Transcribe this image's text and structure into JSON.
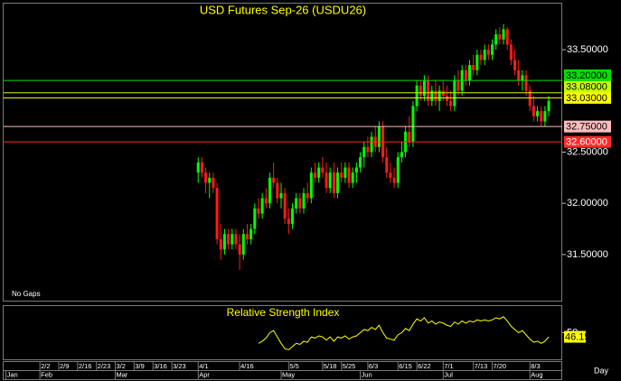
{
  "chart_data": [
    {
      "type": "candlestick",
      "title": "USD Futures Sep-26 (USDU26)",
      "annotation": "No Gaps",
      "x_label": "Day",
      "categories": [
        null,
        null,
        null,
        null,
        null,
        null,
        null,
        null,
        null,
        "2/2",
        null,
        null,
        null,
        null,
        "2/9",
        null,
        null,
        null,
        null,
        "2/16",
        null,
        null,
        null,
        null,
        "2/23",
        null,
        null,
        null,
        null,
        "3/2",
        null,
        null,
        null,
        null,
        "3/9",
        null,
        null,
        null,
        null,
        "3/16",
        null,
        null,
        null,
        null,
        "3/23",
        null,
        null,
        null,
        null,
        null,
        null,
        "4/1",
        null,
        null,
        null,
        null,
        null,
        null,
        null,
        null,
        null,
        null,
        "4/16",
        null,
        null,
        null,
        null,
        null,
        null,
        null,
        null,
        null,
        null,
        null,
        null,
        "5/5",
        null,
        null,
        null,
        null,
        null,
        null,
        null,
        null,
        "5/18",
        null,
        null,
        null,
        null,
        "5/25",
        null,
        null,
        null,
        null,
        null,
        null,
        "6/3",
        null,
        null,
        null,
        null,
        null,
        null,
        null,
        "6/15",
        null,
        null,
        null,
        null,
        "6/22",
        null,
        null,
        null,
        null,
        null,
        null,
        "7/1",
        null,
        null,
        null,
        null,
        null,
        null,
        null,
        "7/13",
        null,
        null,
        null,
        null,
        "7/20",
        null,
        null,
        null,
        null,
        null,
        null,
        null,
        null,
        null,
        "8/3",
        null,
        null,
        null,
        null,
        null,
        null,
        null,
        null
      ],
      "months": [
        "Jan",
        null,
        null,
        null,
        null,
        null,
        null,
        null,
        null,
        "Feb",
        null,
        null,
        null,
        null,
        null,
        null,
        null,
        null,
        null,
        null,
        null,
        null,
        null,
        null,
        null,
        null,
        null,
        null,
        null,
        "Mar",
        null,
        null,
        null,
        null,
        null,
        null,
        null,
        null,
        null,
        null,
        null,
        null,
        null,
        null,
        null,
        null,
        null,
        null,
        null,
        null,
        null,
        "Apr",
        null,
        null,
        null,
        null,
        null,
        null,
        null,
        null,
        null,
        null,
        null,
        null,
        null,
        null,
        null,
        null,
        null,
        null,
        null,
        null,
        null,
        "May",
        null,
        null,
        null,
        null,
        null,
        null,
        null,
        null,
        null,
        null,
        null,
        null,
        null,
        null,
        null,
        null,
        null,
        null,
        null,
        null,
        "Jun",
        null,
        null,
        null,
        null,
        null,
        null,
        null,
        null,
        null,
        null,
        null,
        null,
        null,
        null,
        null,
        null,
        null,
        null,
        null,
        null,
        null,
        "Jul",
        null,
        null,
        null,
        null,
        null,
        null,
        null,
        null,
        null,
        null,
        null,
        null,
        null,
        null,
        null,
        null,
        null,
        null,
        null,
        null,
        null,
        null,
        "Aug",
        null,
        null,
        null,
        null,
        null,
        null,
        null,
        null
      ],
      "open": [
        null,
        null,
        null,
        null,
        null,
        null,
        null,
        null,
        null,
        null,
        null,
        null,
        null,
        null,
        null,
        null,
        null,
        null,
        null,
        null,
        null,
        null,
        null,
        null,
        null,
        null,
        null,
        null,
        null,
        null,
        null,
        null,
        null,
        null,
        null,
        null,
        null,
        null,
        null,
        null,
        null,
        null,
        null,
        null,
        null,
        null,
        null,
        null,
        null,
        null,
        null,
        32.3,
        32.4,
        32.3,
        32.2,
        32.25,
        32.15,
        31.65,
        31.55,
        31.7,
        31.6,
        31.7,
        31.6,
        31.5,
        31.7,
        31.65,
        31.75,
        31.95,
        31.9,
        32.05,
        32.0,
        32.25,
        32.2,
        32.05,
        32.1,
        31.85,
        31.8,
        31.95,
        32.05,
        31.95,
        32.1,
        32.05,
        32.3,
        32.25,
        32.35,
        32.3,
        32.15,
        32.3,
        32.1,
        32.3,
        32.25,
        32.35,
        32.2,
        32.3,
        32.35,
        32.45,
        32.55,
        32.5,
        32.65,
        32.55,
        32.75,
        32.45,
        32.3,
        32.25,
        32.2,
        32.45,
        32.5,
        32.7,
        32.6,
        32.95,
        33.15,
        33.05,
        33.2,
        33.0,
        33.1,
        33.0,
        33.1,
        33.05,
        33.0,
        32.95,
        33.2,
        33.1,
        33.3,
        33.2,
        33.35,
        33.3,
        33.45,
        33.4,
        33.5,
        33.45,
        33.55,
        33.65,
        33.6,
        33.7,
        33.55,
        33.4,
        33.3,
        33.2,
        33.25,
        33.1,
        32.95,
        32.85,
        32.9,
        32.8,
        32.9,
        null,
        null,
        null
      ],
      "high": [
        null,
        null,
        null,
        null,
        null,
        null,
        null,
        null,
        null,
        null,
        null,
        null,
        null,
        null,
        null,
        null,
        null,
        null,
        null,
        null,
        null,
        null,
        null,
        null,
        null,
        null,
        null,
        null,
        null,
        null,
        null,
        null,
        null,
        null,
        null,
        null,
        null,
        null,
        null,
        null,
        null,
        null,
        null,
        null,
        null,
        null,
        null,
        null,
        null,
        null,
        null,
        32.45,
        32.45,
        32.35,
        32.3,
        32.3,
        32.2,
        31.8,
        31.75,
        31.75,
        31.75,
        31.75,
        31.7,
        31.75,
        31.8,
        31.8,
        32.0,
        32.05,
        32.1,
        32.15,
        32.3,
        32.4,
        32.25,
        32.2,
        32.15,
        31.95,
        32.0,
        32.1,
        32.1,
        32.15,
        32.2,
        32.35,
        32.4,
        32.4,
        32.45,
        32.4,
        32.35,
        32.4,
        32.35,
        32.4,
        32.4,
        32.4,
        32.35,
        32.4,
        32.5,
        32.6,
        32.65,
        32.7,
        32.75,
        32.8,
        32.8,
        32.55,
        32.4,
        32.35,
        32.5,
        32.6,
        32.75,
        32.85,
        33.0,
        33.2,
        33.2,
        33.25,
        33.25,
        33.15,
        33.2,
        33.15,
        33.2,
        33.15,
        33.1,
        33.25,
        33.3,
        33.35,
        33.35,
        33.4,
        33.45,
        33.5,
        33.5,
        33.55,
        33.55,
        33.6,
        33.7,
        33.72,
        33.75,
        33.72,
        33.6,
        33.5,
        33.4,
        33.3,
        33.3,
        33.15,
        33.05,
        32.95,
        32.95,
        32.95,
        33.05,
        null,
        null,
        null
      ],
      "low": [
        null,
        null,
        null,
        null,
        null,
        null,
        null,
        null,
        null,
        null,
        null,
        null,
        null,
        null,
        null,
        null,
        null,
        null,
        null,
        null,
        null,
        null,
        null,
        null,
        null,
        null,
        null,
        null,
        null,
        null,
        null,
        null,
        null,
        null,
        null,
        null,
        null,
        null,
        null,
        null,
        null,
        null,
        null,
        null,
        null,
        null,
        null,
        null,
        null,
        null,
        null,
        32.2,
        32.25,
        32.1,
        32.05,
        32.1,
        31.6,
        31.45,
        31.5,
        31.55,
        31.55,
        31.55,
        31.35,
        31.45,
        31.6,
        31.6,
        31.7,
        31.85,
        31.85,
        31.95,
        31.95,
        32.15,
        32.0,
        31.95,
        31.8,
        31.7,
        31.75,
        31.9,
        31.9,
        31.9,
        32.0,
        32.0,
        32.2,
        32.2,
        32.25,
        32.1,
        32.1,
        32.05,
        32.05,
        32.2,
        32.2,
        32.15,
        32.15,
        32.2,
        32.3,
        32.35,
        32.45,
        32.45,
        32.5,
        32.5,
        32.4,
        32.25,
        32.2,
        32.15,
        32.15,
        32.4,
        32.45,
        32.55,
        32.55,
        32.9,
        33.0,
        33.0,
        32.95,
        32.95,
        32.95,
        32.9,
        33.0,
        32.95,
        32.9,
        32.9,
        33.05,
        33.05,
        33.15,
        33.15,
        33.25,
        33.25,
        33.35,
        33.35,
        33.4,
        33.4,
        33.5,
        33.55,
        33.55,
        33.5,
        33.35,
        33.25,
        33.15,
        33.1,
        33.05,
        32.9,
        32.8,
        32.8,
        32.75,
        32.75,
        32.85,
        null,
        null,
        null
      ],
      "close": [
        null,
        null,
        null,
        null,
        null,
        null,
        null,
        null,
        null,
        null,
        null,
        null,
        null,
        null,
        null,
        null,
        null,
        null,
        null,
        null,
        null,
        null,
        null,
        null,
        null,
        null,
        null,
        null,
        null,
        null,
        null,
        null,
        null,
        null,
        null,
        null,
        null,
        null,
        null,
        null,
        null,
        null,
        null,
        null,
        null,
        null,
        null,
        null,
        null,
        null,
        null,
        32.4,
        32.3,
        32.2,
        32.25,
        32.15,
        31.65,
        31.55,
        31.7,
        31.6,
        31.7,
        31.6,
        31.5,
        31.7,
        31.65,
        31.75,
        31.95,
        31.9,
        32.05,
        32.0,
        32.25,
        32.2,
        32.05,
        32.1,
        31.85,
        31.8,
        31.95,
        32.05,
        31.95,
        32.1,
        32.05,
        32.3,
        32.25,
        32.35,
        32.3,
        32.15,
        32.3,
        32.1,
        32.3,
        32.25,
        32.35,
        32.2,
        32.3,
        32.35,
        32.45,
        32.55,
        32.5,
        32.65,
        32.55,
        32.75,
        32.45,
        32.3,
        32.25,
        32.2,
        32.45,
        32.5,
        32.7,
        32.6,
        32.95,
        33.15,
        33.05,
        33.2,
        33.0,
        33.1,
        33.0,
        33.1,
        33.05,
        33.0,
        32.95,
        33.2,
        33.1,
        33.3,
        33.2,
        33.35,
        33.3,
        33.45,
        33.4,
        33.5,
        33.45,
        33.55,
        33.65,
        33.6,
        33.7,
        33.55,
        33.4,
        33.3,
        33.2,
        33.25,
        33.1,
        32.95,
        32.85,
        32.9,
        32.8,
        32.9,
        33.0,
        null,
        null,
        null
      ],
      "up_color": "#00ff00",
      "down_color": "#ff1a1a",
      "ylim": [
        31.05,
        33.95
      ],
      "yticks": [
        {
          "value": 31.5,
          "label": "31.50000"
        },
        {
          "value": 32.0,
          "label": "32.00000"
        },
        {
          "value": 32.5,
          "label": "32.50000"
        },
        {
          "value": 33.5,
          "label": "33.50000"
        }
      ],
      "levels": [
        {
          "value": 33.2,
          "label": "33.20000",
          "color": "#00e000",
          "text_color": "#000000"
        },
        {
          "value": 33.08,
          "label": "33.08000",
          "color": "#c8ff00",
          "text_color": "#000000"
        },
        {
          "value": 33.03,
          "label": "33.03000",
          "color": "#ffff00",
          "text_color": "#000000"
        },
        {
          "value": 32.75,
          "label": "32.75000",
          "color": "#ffbcbc",
          "text_color": "#000000"
        },
        {
          "value": 32.6,
          "label": "32.60000",
          "color": "#ff2a2a",
          "text_color": "#ffffff"
        }
      ]
    },
    {
      "type": "line",
      "title": "Relative Strength Index",
      "color": "#ffff00",
      "label_color": "#ffff00",
      "values": [
        null,
        null,
        null,
        null,
        null,
        null,
        null,
        null,
        null,
        null,
        null,
        null,
        null,
        null,
        null,
        null,
        null,
        null,
        null,
        null,
        null,
        null,
        null,
        null,
        null,
        null,
        null,
        null,
        null,
        null,
        null,
        null,
        null,
        null,
        null,
        null,
        null,
        null,
        null,
        null,
        null,
        null,
        null,
        null,
        null,
        null,
        null,
        null,
        null,
        null,
        null,
        null,
        null,
        null,
        null,
        null,
        null,
        null,
        null,
        null,
        null,
        null,
        null,
        null,
        null,
        null,
        null,
        40,
        42,
        45,
        50,
        52,
        46,
        40,
        35,
        34,
        37,
        40,
        39,
        42,
        41,
        46,
        45,
        47,
        46,
        43,
        46,
        42,
        46,
        45,
        47,
        44,
        46,
        47,
        50,
        53,
        52,
        55,
        53,
        57,
        50,
        45,
        44,
        43,
        48,
        50,
        54,
        52,
        58,
        63,
        61,
        64,
        59,
        61,
        58,
        60,
        59,
        57,
        56,
        60,
        58,
        61,
        59,
        61,
        60,
        62,
        61,
        62,
        61,
        62,
        64,
        63,
        65,
        61,
        56,
        53,
        50,
        52,
        48,
        44,
        41,
        42,
        40,
        42,
        46.15,
        null,
        null,
        null
      ],
      "ylim": [
        25,
        75
      ],
      "yticks": [
        50
      ]
    }
  ]
}
